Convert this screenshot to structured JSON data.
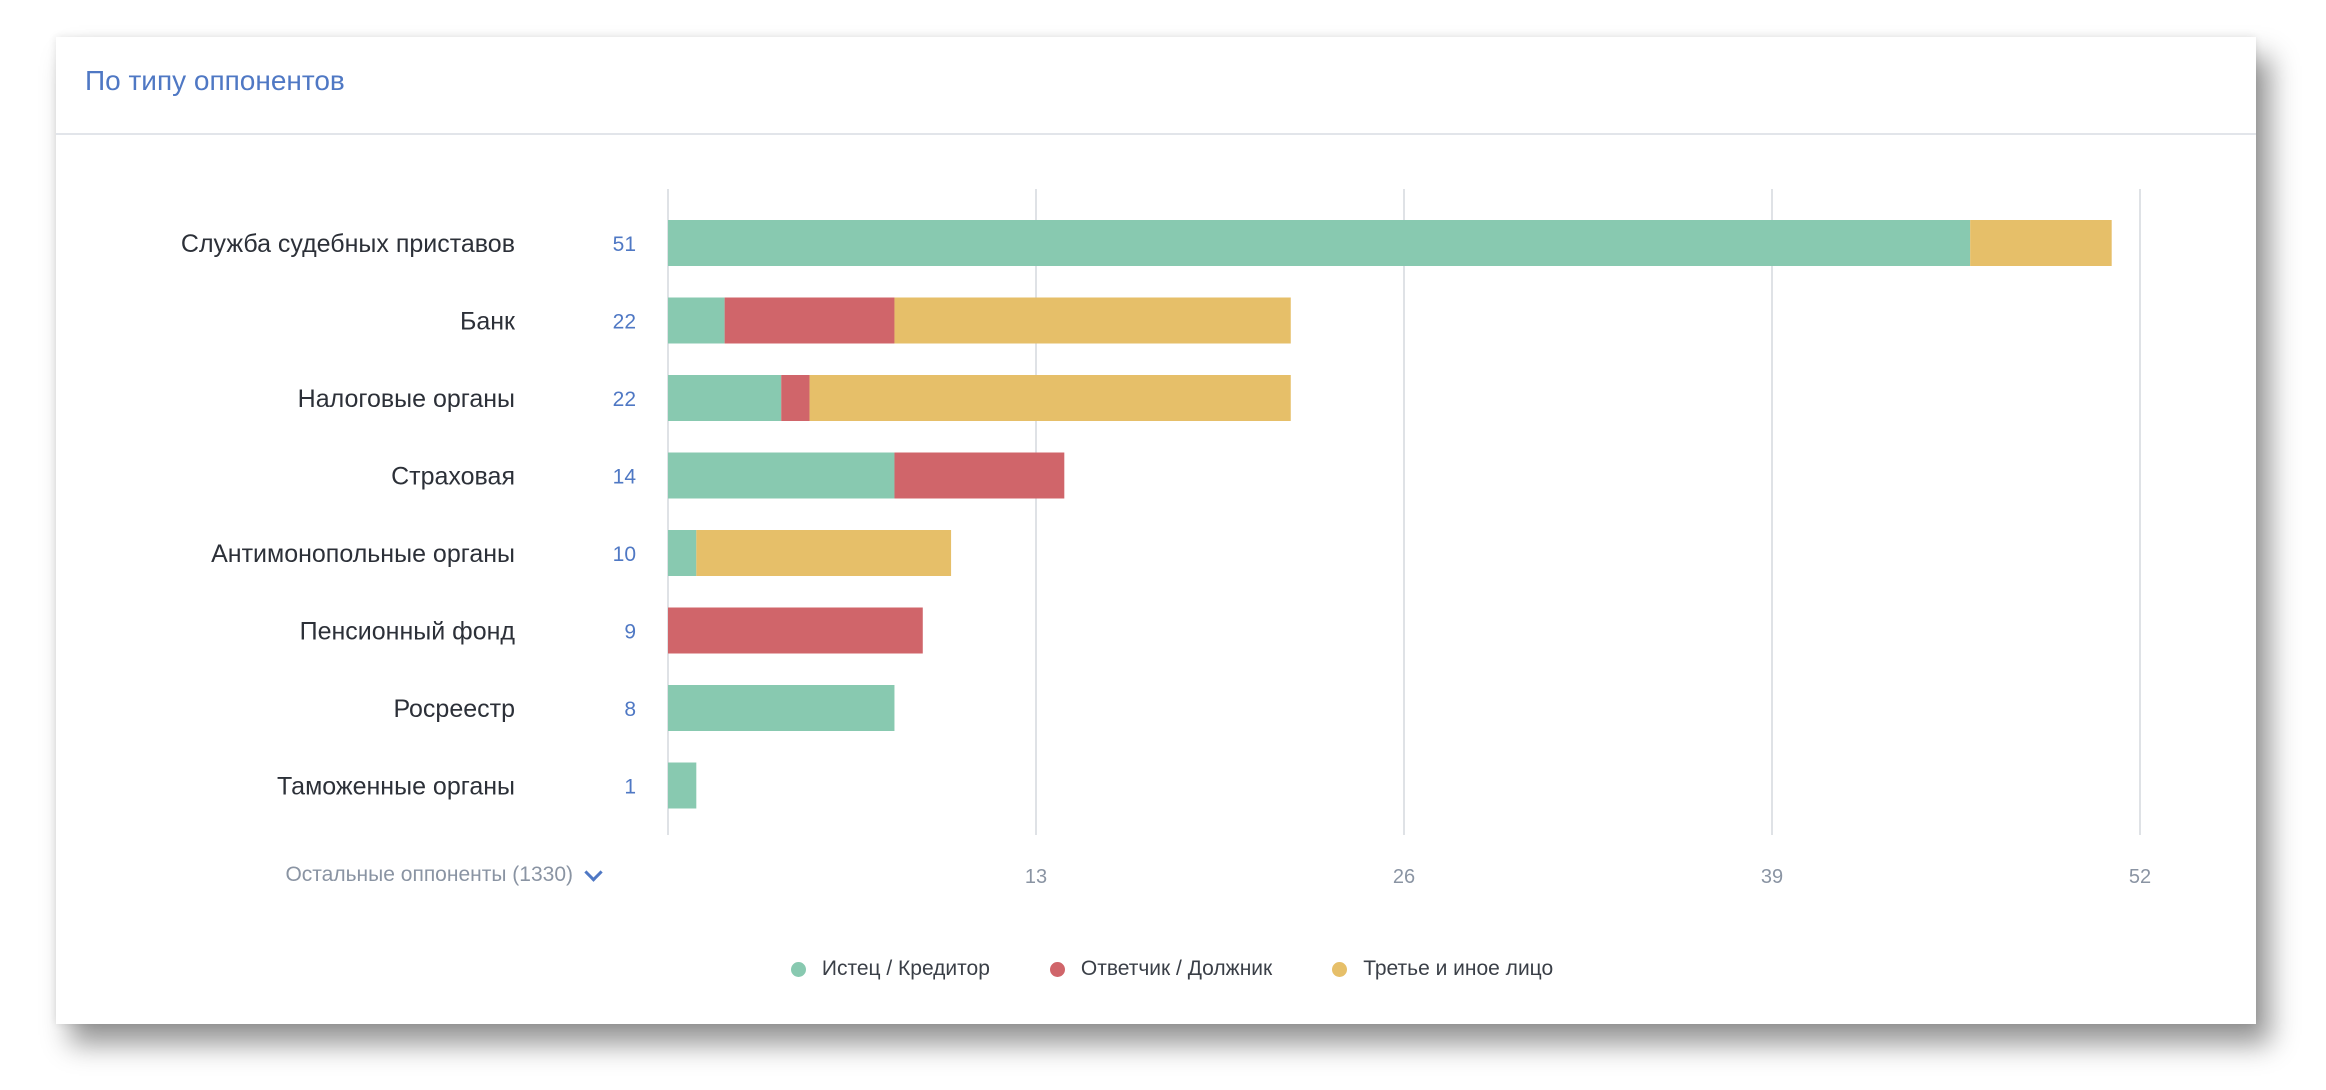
{
  "card": {
    "title": "По типу оппонентов",
    "more_label": "Остальные оппоненты (1330)"
  },
  "colors": {
    "plaintiff": "#88c9b0",
    "defendant": "#d0656a",
    "third": "#e6bf69",
    "grid": "#dfe2e6",
    "accent": "#4f78c4"
  },
  "chart_data": {
    "type": "bar",
    "orientation": "horizontal",
    "stacked": true,
    "categories": [
      "Служба судебных приставов",
      "Банк",
      "Налоговые органы",
      "Страховая",
      "Антимонопольные органы",
      "Пенсионный фонд",
      "Росреестр",
      "Таможенные органы"
    ],
    "totals": [
      51,
      22,
      22,
      14,
      10,
      9,
      8,
      1
    ],
    "series": [
      {
        "name": "Истец / Кредитор",
        "color": "#88c9b0",
        "values": [
          46,
          2,
          4,
          8,
          1,
          0,
          8,
          1
        ]
      },
      {
        "name": "Ответчик / Должник",
        "color": "#d0656a",
        "values": [
          0,
          6,
          1,
          6,
          0,
          9,
          0,
          0
        ]
      },
      {
        "name": "Третье и иное лицо",
        "color": "#e6bf69",
        "values": [
          5,
          14,
          17,
          0,
          9,
          0,
          0,
          0
        ]
      }
    ],
    "xticks": [
      13,
      26,
      39,
      52
    ],
    "xlim": [
      0,
      52
    ],
    "grid": true,
    "legend_position": "bottom"
  }
}
